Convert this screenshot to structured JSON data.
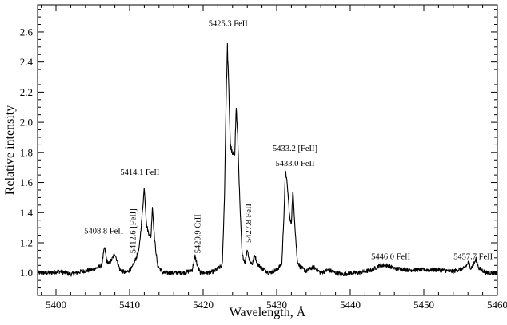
{
  "chart_data": {
    "type": "line",
    "xlabel": "Wavelength, Å",
    "ylabel": "Relative intensity",
    "xlim": [
      5397.5,
      5460
    ],
    "ylim": [
      0.85,
      2.78
    ],
    "x_ticks": [
      5400,
      5410,
      5420,
      5430,
      5440,
      5450,
      5460
    ],
    "y_ticks": [
      1.0,
      1.2,
      1.4,
      1.6,
      1.8,
      2.0,
      2.2,
      2.4,
      2.6
    ],
    "x_tick_labels": [
      "5400",
      "5410",
      "5420",
      "5430",
      "5440",
      "5450",
      "5460"
    ],
    "y_tick_labels": [
      "1.0",
      "1.2",
      "1.4",
      "1.6",
      "1.8",
      "2.0",
      "2.2",
      "2.4",
      "2.6"
    ],
    "grid": false,
    "line_color": "#000000",
    "series": [
      {
        "x": [
          5397.5,
          5399,
          5400.5,
          5402,
          5403.5,
          5405,
          5406.2,
          5406.6,
          5406.9,
          5407.2,
          5407.6,
          5408.0,
          5408.3,
          5408.7,
          5409.5,
          5410.3,
          5410.9,
          5411.3,
          5411.7,
          5412.0,
          5412.3,
          5412.6,
          5412.9,
          5413.1,
          5413.4,
          5413.8,
          5414.5,
          5416,
          5417.5,
          5418.5,
          5418.9,
          5419.2,
          5419.6,
          5420.5,
          5421.5,
          5422.6,
          5422.9,
          5423.1,
          5423.3,
          5423.5,
          5423.7,
          5424.0,
          5424.3,
          5424.5,
          5424.7,
          5425.0,
          5425.3,
          5425.7,
          5426.0,
          5426.3,
          5426.7,
          5427.0,
          5427.4,
          5428,
          5429,
          5430,
          5430.7,
          5431.0,
          5431.2,
          5431.5,
          5431.8,
          5432.0,
          5432.2,
          5432.5,
          5432.8,
          5433.2,
          5434,
          5435,
          5436,
          5437,
          5438,
          5439,
          5440,
          5441,
          5442,
          5443,
          5444,
          5445,
          5446,
          5448,
          5450,
          5452,
          5454,
          5455.5,
          5456.1,
          5456.4,
          5456.8,
          5457.1,
          5457.5,
          5458.5,
          5460
        ],
        "y": [
          1.0,
          1.0,
          1.01,
          0.99,
          1.01,
          1.02,
          1.05,
          1.17,
          1.08,
          1.06,
          1.09,
          1.13,
          1.08,
          1.02,
          1.0,
          1.03,
          1.1,
          1.16,
          1.38,
          1.57,
          1.32,
          1.26,
          1.24,
          1.44,
          1.22,
          1.05,
          1.0,
          1.0,
          1.0,
          1.02,
          1.11,
          1.05,
          1.0,
          1.0,
          1.01,
          1.05,
          1.5,
          2.1,
          2.5,
          2.2,
          1.85,
          1.78,
          1.8,
          2.1,
          1.9,
          1.45,
          1.12,
          1.07,
          1.16,
          1.08,
          1.06,
          1.12,
          1.06,
          1.03,
          1.0,
          1.02,
          1.06,
          1.4,
          1.69,
          1.55,
          1.35,
          1.33,
          1.55,
          1.3,
          1.08,
          1.04,
          1.01,
          1.04,
          1.0,
          1.02,
          1.0,
          0.99,
          1.0,
          1.0,
          1.01,
          1.02,
          1.05,
          1.05,
          1.03,
          1.02,
          1.02,
          1.02,
          1.01,
          1.03,
          1.07,
          1.03,
          1.06,
          1.09,
          1.03,
          1.0,
          1.0
        ]
      }
    ],
    "annotations": [
      {
        "text": "5408.8 FeII",
        "x": 5406.5,
        "y": 1.26,
        "rotate": false
      },
      {
        "text": "5412.6 [FeII]",
        "x": 5410.8,
        "y": 1.13,
        "rotate": true
      },
      {
        "text": "5414.1 FeII",
        "x": 5411.4,
        "y": 1.65,
        "rotate": false
      },
      {
        "text": "5420.9 CrII",
        "x": 5419.6,
        "y": 1.13,
        "rotate": true
      },
      {
        "text": "5425.3 FeII",
        "x": 5423.4,
        "y": 2.64,
        "rotate": false
      },
      {
        "text": "5427.8 FeII",
        "x": 5426.5,
        "y": 1.2,
        "rotate": true
      },
      {
        "text": "5433.2 [FeII]",
        "x": 5432.5,
        "y": 1.81,
        "rotate": false
      },
      {
        "text": "5433.0 FeII",
        "x": 5432.5,
        "y": 1.71,
        "rotate": false
      },
      {
        "text": "5446.0 FeII",
        "x": 5445.5,
        "y": 1.09,
        "rotate": false
      },
      {
        "text": "5457.7 FeII",
        "x": 5456.7,
        "y": 1.09,
        "rotate": false
      }
    ]
  }
}
